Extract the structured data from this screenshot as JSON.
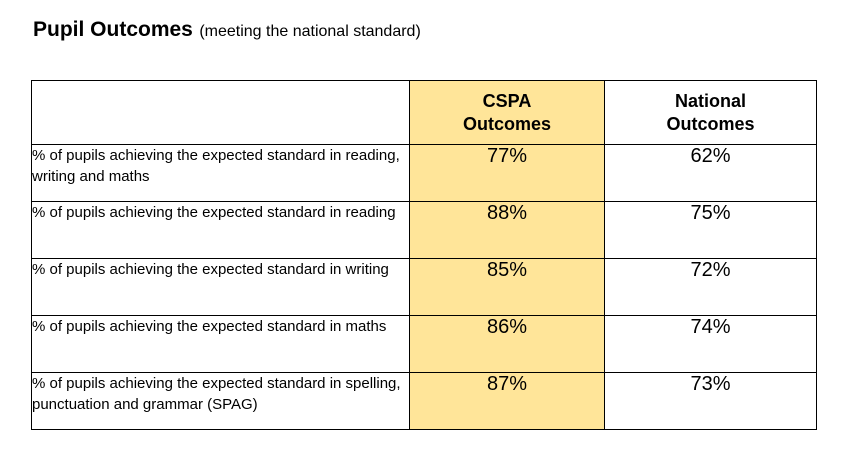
{
  "heading": {
    "title": "Pupil Outcomes",
    "subtitle": "(meeting the national standard)"
  },
  "table": {
    "header": {
      "blank": "",
      "cspa_line1": "CSPA",
      "cspa_line2": "Outcomes",
      "national_line1": "National",
      "national_line2": "Outcomes"
    },
    "rows": [
      {
        "description": "% of pupils achieving the expected standard in reading, writing and maths",
        "cspa": "77%",
        "national": "62%"
      },
      {
        "description": "% of pupils achieving the expected standard in reading",
        "cspa": "88%",
        "national": "75%"
      },
      {
        "description": "% of pupils achieving the expected standard in writing",
        "cspa": "85%",
        "national": "72%"
      },
      {
        "description": "% of pupils achieving the expected standard in maths",
        "cspa": "86%",
        "national": "74%"
      },
      {
        "description": "% of pupils achieving the expected standard in spelling, punctuation and grammar (SPAG)",
        "cspa": "87%",
        "national": "73%"
      }
    ]
  },
  "colors": {
    "cspa_highlight": "#ffe599",
    "border": "#000000"
  }
}
